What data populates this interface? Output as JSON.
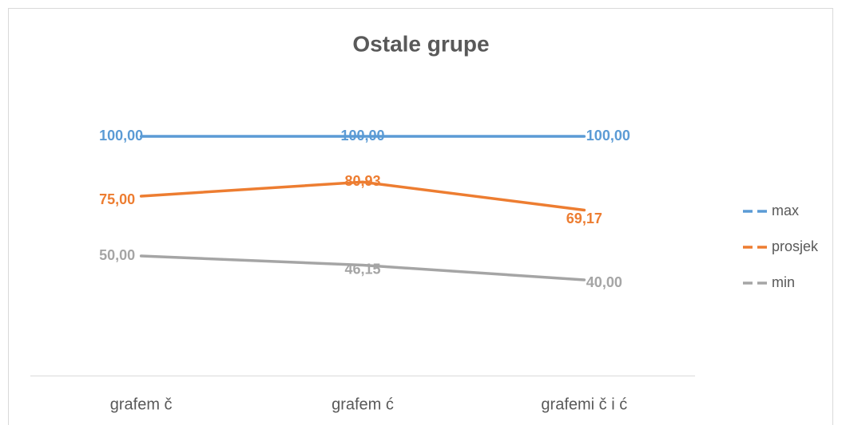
{
  "chart_data": {
    "type": "line",
    "title": "Ostale grupe",
    "categories": [
      "grafem č",
      "grafem ć",
      "grafemi č i ć"
    ],
    "series": [
      {
        "name": "max",
        "color": "#5b9bd5",
        "values": [
          100,
          100,
          100
        ],
        "value_labels": [
          "100,00",
          "100,00",
          "100,00"
        ]
      },
      {
        "name": "prosjek",
        "color": "#ed7d31",
        "values": [
          75,
          80.93,
          69.17
        ],
        "value_labels": [
          "75,00",
          "80,93",
          "69,17"
        ]
      },
      {
        "name": "min",
        "color": "#a5a5a5",
        "values": [
          50,
          46.15,
          40
        ],
        "value_labels": [
          "50,00",
          "46,15",
          "40,00"
        ]
      }
    ],
    "ylim": [
      0,
      120
    ],
    "legend": "right"
  }
}
